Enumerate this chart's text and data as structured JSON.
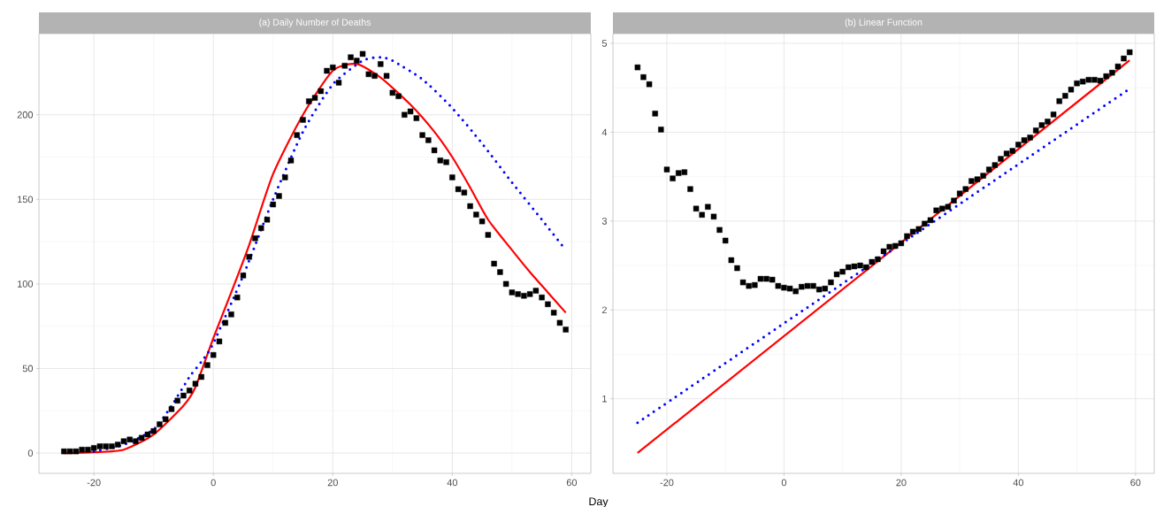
{
  "chart_data": [
    {
      "type": "scatter",
      "title": "(a) Daily Number of Deaths",
      "xlabel": "Day",
      "x": [
        -25,
        -24,
        -23,
        -22,
        -21,
        -20,
        -19,
        -18,
        -17,
        -16,
        -15,
        -14,
        -13,
        -12,
        -11,
        -10,
        -9,
        -8,
        -7,
        -6,
        -5,
        -4,
        -3,
        -2,
        -1,
        0,
        1,
        2,
        3,
        4,
        5,
        6,
        7,
        8,
        9,
        10,
        11,
        12,
        13,
        14,
        15,
        16,
        17,
        18,
        19,
        20,
        21,
        22,
        23,
        24,
        25,
        26,
        27,
        28,
        29,
        30,
        31,
        32,
        33,
        34,
        35,
        36,
        37,
        38,
        39,
        40,
        41,
        42,
        43,
        44,
        45,
        46,
        47,
        48,
        49,
        50,
        51,
        52,
        53,
        54,
        55,
        56,
        57,
        58,
        59
      ],
      "series": [
        {
          "color": "#000000",
          "marker": "square",
          "values": [
            1,
            1,
            1,
            2,
            2,
            3,
            4,
            4,
            4,
            5,
            7,
            8,
            7,
            9,
            11,
            13,
            17,
            20,
            26,
            31,
            34,
            37,
            41,
            45,
            52,
            58,
            66,
            77,
            82,
            92,
            105,
            116,
            127,
            133,
            138,
            147,
            152,
            163,
            173,
            188,
            197,
            208,
            210,
            214,
            226,
            228,
            219,
            229,
            234,
            232,
            236,
            224,
            223,
            230,
            223,
            213,
            211,
            200,
            202,
            198,
            188,
            185,
            179,
            173,
            172,
            163,
            156,
            154,
            146,
            141,
            137,
            129,
            112,
            107,
            100,
            95,
            94,
            93,
            94,
            96,
            92,
            88,
            83,
            77,
            73
          ]
        },
        {
          "type": "line",
          "color": "#ff0000",
          "line_style": "solid",
          "x": [
            -25,
            -20,
            -15,
            -10,
            -5,
            -3,
            0,
            3,
            6,
            10,
            15,
            20,
            24,
            28,
            33,
            37,
            40,
            43,
            46,
            50,
            53,
            56,
            59
          ],
          "values": [
            0,
            0.5,
            2,
            11,
            28,
            39,
            68,
            95,
            123,
            165,
            200,
            226,
            230,
            222,
            206,
            190,
            175,
            157,
            138,
            120,
            107,
            95,
            83
          ]
        },
        {
          "type": "line",
          "color": "#0000ff",
          "line_style": "dotted",
          "x": [
            -20,
            -15,
            -10,
            -7,
            -4,
            -2,
            0,
            5,
            10,
            15,
            20,
            25,
            28,
            30,
            35,
            40,
            45,
            50,
            55,
            59
          ],
          "values": [
            1,
            5,
            14,
            28,
            45,
            54,
            65,
            105,
            150,
            190,
            218,
            232,
            234,
            232,
            221,
            204,
            183,
            160,
            138,
            120
          ]
        }
      ],
      "xlim": [
        -29.2,
        63.2
      ],
      "ylim": [
        -12,
        248
      ],
      "xticks": [
        -20,
        0,
        20,
        40,
        60
      ],
      "yticks": [
        0,
        50,
        100,
        150,
        200
      ],
      "grid": true
    },
    {
      "type": "scatter",
      "title": "(b) Linear Function",
      "x": [
        -25,
        -24,
        -23,
        -22,
        -21,
        -20,
        -19,
        -18,
        -17,
        -16,
        -15,
        -14,
        -13,
        -12,
        -11,
        -10,
        -9,
        -8,
        -7,
        -6,
        -5,
        -4,
        -3,
        -2,
        -1,
        0,
        1,
        2,
        3,
        4,
        5,
        6,
        7,
        8,
        9,
        10,
        11,
        12,
        13,
        14,
        15,
        16,
        17,
        18,
        19,
        20,
        21,
        22,
        23,
        24,
        25,
        26,
        27,
        28,
        29,
        30,
        31,
        32,
        33,
        34,
        35,
        36,
        37,
        38,
        39,
        40,
        41,
        42,
        43,
        44,
        45,
        46,
        47,
        48,
        49,
        50,
        51,
        52,
        53,
        54,
        55,
        56,
        57,
        58,
        59
      ],
      "series": [
        {
          "color": "#000000",
          "marker": "square",
          "values": [
            4.73,
            4.62,
            4.54,
            4.21,
            4.03,
            3.58,
            3.48,
            3.54,
            3.55,
            3.36,
            3.14,
            3.07,
            3.16,
            3.05,
            2.9,
            2.78,
            2.56,
            2.47,
            2.31,
            2.27,
            2.28,
            2.35,
            2.35,
            2.34,
            2.27,
            2.25,
            2.24,
            2.21,
            2.26,
            2.27,
            2.27,
            2.23,
            2.24,
            2.31,
            2.4,
            2.43,
            2.48,
            2.49,
            2.5,
            2.48,
            2.54,
            2.57,
            2.66,
            2.71,
            2.72,
            2.75,
            2.83,
            2.88,
            2.91,
            2.97,
            3.01,
            3.12,
            3.14,
            3.16,
            3.23,
            3.31,
            3.36,
            3.45,
            3.47,
            3.51,
            3.58,
            3.63,
            3.7,
            3.76,
            3.79,
            3.86,
            3.91,
            3.94,
            4.02,
            4.08,
            4.12,
            4.2,
            4.35,
            4.41,
            4.48,
            4.55,
            4.57,
            4.59,
            4.59,
            4.58,
            4.63,
            4.67,
            4.74,
            4.83,
            4.9
          ]
        },
        {
          "type": "line",
          "color": "#ff0000",
          "line_style": "solid",
          "x": [
            -25,
            59
          ],
          "values": [
            0.39,
            4.81
          ]
        },
        {
          "type": "line",
          "color": "#0000ff",
          "line_style": "dotted",
          "x": [
            -25,
            59
          ],
          "values": [
            0.73,
            4.49
          ]
        }
      ],
      "xlim": [
        -29.2,
        63.2
      ],
      "ylim": [
        0.16,
        5.11
      ],
      "xticks": [
        -20,
        0,
        20,
        40,
        60
      ],
      "yticks": [
        1,
        2,
        3,
        4,
        5
      ],
      "grid": true
    }
  ]
}
